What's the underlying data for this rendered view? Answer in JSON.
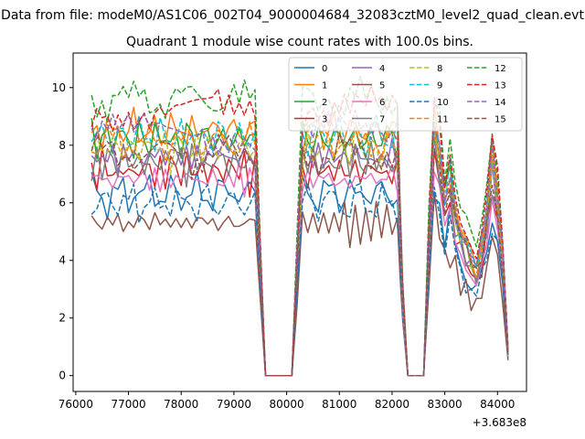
{
  "figure": {
    "suptitle": "Data from file: modeM0/AS1C06_002T04_9000004684_32083cztM0_level2_quad_clean.evt"
  },
  "chart_data": {
    "type": "line",
    "title": "Quadrant 1 module wise count rates with 100.0s bins.",
    "xlabel": "",
    "ylabel": "",
    "x_offset_label": "+3.683e8",
    "xlim": [
      75950,
      84550
    ],
    "ylim": [
      -0.55,
      11.2
    ],
    "xticks": [
      76000,
      77000,
      78000,
      79000,
      80000,
      81000,
      82000,
      83000,
      84000
    ],
    "xtick_labels": [
      "76000",
      "77000",
      "78000",
      "79000",
      "80000",
      "81000",
      "82000",
      "83000",
      "84000"
    ],
    "yticks": [
      0,
      2,
      4,
      6,
      8,
      10
    ],
    "ytick_labels": [
      "0",
      "2",
      "4",
      "6",
      "8",
      "10"
    ],
    "grid": false,
    "legend_position": "top-right",
    "legend_columns": 4,
    "x": [
      76300,
      76400,
      76500,
      76600,
      76700,
      76800,
      76900,
      77000,
      77100,
      77200,
      77300,
      77400,
      77500,
      77600,
      77700,
      77800,
      77900,
      78000,
      78100,
      78200,
      78300,
      78400,
      78500,
      78600,
      78700,
      78800,
      78900,
      79000,
      79100,
      79200,
      79300,
      79400,
      79500,
      79600,
      79700,
      79800,
      79900,
      80000,
      80100,
      80200,
      80300,
      80400,
      80500,
      80600,
      80700,
      80800,
      80900,
      81000,
      81100,
      81200,
      81300,
      81400,
      81500,
      81600,
      81700,
      81800,
      81900,
      82000,
      82100,
      82150,
      82200,
      82300,
      82400,
      82500,
      82600,
      82700,
      82800,
      82900,
      83000,
      83100,
      83200,
      83300,
      83400,
      83500,
      83600,
      83700,
      83800,
      83900,
      84000,
      84100,
      84200
    ],
    "base_pattern": [
      0.0,
      -0.3,
      0.2,
      0.3,
      -0.1,
      0.1,
      -0.4,
      0.2,
      -0.2,
      0.3,
      -0.3,
      0.2,
      0.0,
      -0.2,
      0.4,
      -0.1,
      0.1,
      -0.3,
      0.2,
      0.0,
      -0.2,
      0.2,
      -0.1,
      0.3,
      -0.3,
      0.1,
      -0.2,
      0.3,
      0.0,
      -0.1,
      0.2,
      0.05,
      0.0,
      0.0,
      0.0,
      0.0,
      0.0,
      0.0,
      0.0,
      0.3,
      -0.2,
      0.3,
      -0.4,
      0.2,
      0.0,
      0.1,
      -0.3,
      0.2,
      -0.1,
      0.3,
      -0.2,
      0.0,
      0.2,
      -0.3,
      0.1,
      0.2,
      -0.1,
      0.0,
      0.05,
      0.0,
      0.0,
      0.0,
      0.0,
      0.0,
      0.0,
      0.05,
      0.3,
      -0.4,
      0.2,
      -0.3,
      0.1,
      -0.2,
      0.3,
      -0.1,
      0.2,
      0.0,
      -0.2,
      0.3,
      0.1,
      0.0,
      0.0
    ],
    "segments": [
      {
        "from": 0,
        "to": 31,
        "profile": "flat"
      },
      {
        "from": 31,
        "to": 33,
        "profile": "drop"
      },
      {
        "from": 33,
        "to": 38,
        "profile": "zero"
      },
      {
        "from": 38,
        "to": 40,
        "profile": "rise"
      },
      {
        "from": 40,
        "to": 58,
        "profile": "flat"
      },
      {
        "from": 58,
        "to": 61,
        "profile": "drop"
      },
      {
        "from": 61,
        "to": 64,
        "profile": "zero"
      },
      {
        "from": 64,
        "to": 81,
        "profile": "second"
      }
    ],
    "second_profile": [
      0.0,
      0.6,
      1.05,
      1.0,
      0.75,
      0.85,
      0.7,
      0.6,
      0.55,
      0.5,
      0.45,
      0.55,
      0.7,
      0.9,
      0.75,
      0.5,
      0.1
    ],
    "series": [
      {
        "name": "0",
        "color": "#1f77b4",
        "style": "solid",
        "level": 6.3,
        "seed": 1
      },
      {
        "name": "1",
        "color": "#ff7f0e",
        "style": "solid",
        "level": 8.5,
        "seed": 2
      },
      {
        "name": "2",
        "color": "#2ca02c",
        "style": "solid",
        "level": 8.2,
        "seed": 3
      },
      {
        "name": "3",
        "color": "#d62728",
        "style": "solid",
        "level": 7.1,
        "seed": 4
      },
      {
        "name": "4",
        "color": "#9467bd",
        "style": "solid",
        "level": 7.6,
        "seed": 5
      },
      {
        "name": "5",
        "color": "#8c564b",
        "style": "solid",
        "level": 5.3,
        "seed": 6
      },
      {
        "name": "6",
        "color": "#e377c2",
        "style": "solid",
        "level": 6.8,
        "seed": 7
      },
      {
        "name": "7",
        "color": "#7f7f7f",
        "style": "solid",
        "level": 7.4,
        "seed": 8
      },
      {
        "name": "8",
        "color": "#bcbd22",
        "style": "dashed",
        "level": 7.9,
        "seed": 9
      },
      {
        "name": "9",
        "color": "#17becf",
        "style": "dashed",
        "level": 8.3,
        "seed": 10
      },
      {
        "name": "10",
        "color": "#1f77b4",
        "style": "dashed",
        "level": 6.0,
        "seed": 11
      },
      {
        "name": "11",
        "color": "#ff7f0e",
        "style": "dashed",
        "level": 8.1,
        "seed": 12
      },
      {
        "name": "12",
        "color": "#2ca02c",
        "style": "dashed",
        "level": 9.6,
        "seed": 13
      },
      {
        "name": "13",
        "color": "#d62728",
        "style": "dashed",
        "level": 9.2,
        "seed": 14
      },
      {
        "name": "14",
        "color": "#9467bd",
        "style": "dashed",
        "level": 8.4,
        "seed": 15
      },
      {
        "name": "15",
        "color": "#8c564b",
        "style": "dashed",
        "level": 7.7,
        "seed": 16
      }
    ]
  }
}
